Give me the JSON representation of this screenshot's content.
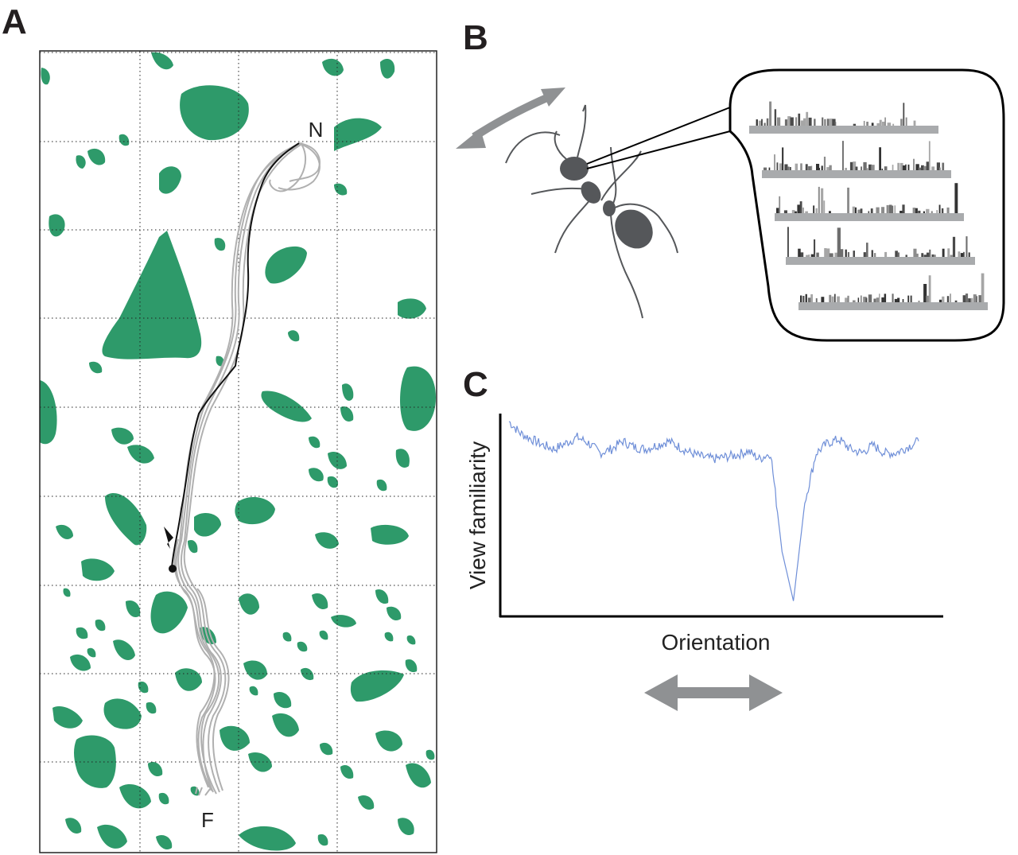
{
  "panels": {
    "a": {
      "letter": "A",
      "nest_label": "N",
      "feeder_label": "F"
    },
    "b": {
      "letter": "B"
    },
    "c": {
      "letter": "C",
      "ylabel": "View familiarity",
      "xlabel": "Orientation"
    }
  },
  "colors": {
    "vegetation": "#2e9a6a",
    "route_grey": "#b0b0b0",
    "route_black": "#111111",
    "arrow_grey": "#8f9193",
    "ant": "#55575a",
    "familiarity_line": "#6f8fd8"
  },
  "chart_data": {
    "type": "line",
    "title": "",
    "xlabel": "Orientation",
    "ylabel": "View familiarity",
    "x_range": [
      -180,
      180
    ],
    "y_range": [
      0,
      1
    ],
    "series": [
      {
        "name": "",
        "x": [
          -180,
          -170,
          -160,
          -150,
          -140,
          -130,
          -120,
          -110,
          -100,
          -90,
          -80,
          -70,
          -60,
          -50,
          -40,
          -30,
          -20,
          -10,
          0,
          10,
          20,
          30,
          40,
          50,
          60,
          70,
          80,
          90,
          100,
          110,
          120,
          130,
          140,
          150,
          160,
          170,
          180
        ],
        "y": [
          0.96,
          0.9,
          0.87,
          0.84,
          0.82,
          0.85,
          0.88,
          0.85,
          0.8,
          0.82,
          0.86,
          0.83,
          0.82,
          0.84,
          0.86,
          0.83,
          0.8,
          0.78,
          0.77,
          0.78,
          0.79,
          0.81,
          0.77,
          0.8,
          0.3,
          0.05,
          0.55,
          0.8,
          0.85,
          0.87,
          0.82,
          0.8,
          0.84,
          0.8,
          0.8,
          0.83,
          0.86
        ]
      }
    ]
  }
}
